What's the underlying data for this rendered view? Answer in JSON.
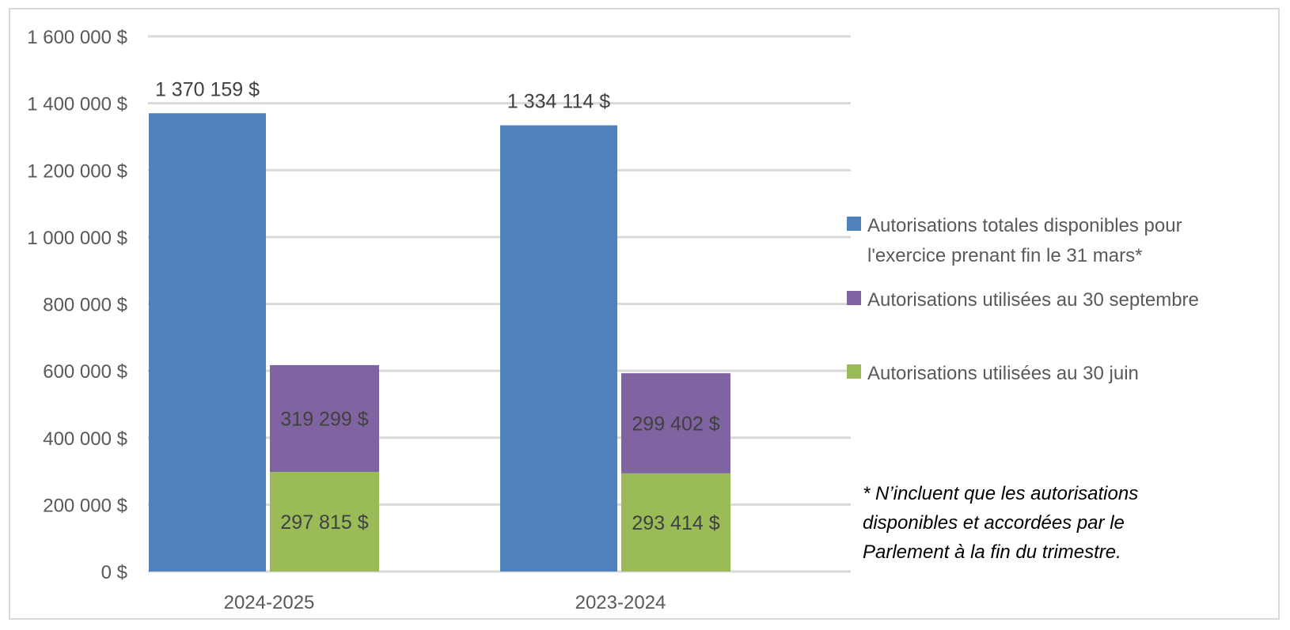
{
  "chart_data": {
    "type": "bar",
    "categories": [
      "2024-2025",
      "2023-2024"
    ],
    "series": [
      {
        "name": "Autorisations totales disponibles pour l'exercice prenant fin le 31 mars*",
        "values": [
          1370159,
          1334114
        ],
        "labels": [
          "1 370 159 $",
          "1 334 114 $"
        ],
        "color": "#4f81bd",
        "stack": "total"
      },
      {
        "name": "Autorisations utilisées au 30 juin",
        "values": [
          297815,
          293414
        ],
        "labels": [
          "297 815 $",
          "293 414 $"
        ],
        "color": "#9bbb59",
        "stack": "used"
      },
      {
        "name": "Autorisations utilisées au 30 septembre",
        "values": [
          319299,
          299402
        ],
        "labels": [
          "319 299 $",
          "299 402 $"
        ],
        "color": "#8064a2",
        "stack": "used"
      }
    ],
    "ylim": [
      0,
      1600000
    ],
    "yticks": [
      0,
      200000,
      400000,
      600000,
      800000,
      1000000,
      1200000,
      1400000,
      1600000
    ],
    "ytick_labels": [
      "0 $",
      "200 000 $",
      "400 000 $",
      "600 000 $",
      "800 000 $",
      "1 000 000 $",
      "1 200 000 $",
      "1 400 000 $",
      "1 600 000 $"
    ],
    "grid": true,
    "legend": {
      "placement": "right",
      "entries": [
        {
          "lines": [
            "Autorisations totales disponibles pour",
            "l'exercice prenant fin le 31 mars*"
          ],
          "color": "#4f81bd"
        },
        {
          "lines": [
            "Autorisations utilisées au 30 septembre"
          ],
          "color": "#8064a2"
        },
        {
          "lines": [
            "Autorisations utilisées au 30 juin"
          ],
          "color": "#9bbb59"
        }
      ]
    },
    "note_lines": [
      "* N’incluent que les autorisations",
      "disponibles et accordées par le",
      "Parlement à la fin du trimestre."
    ]
  }
}
